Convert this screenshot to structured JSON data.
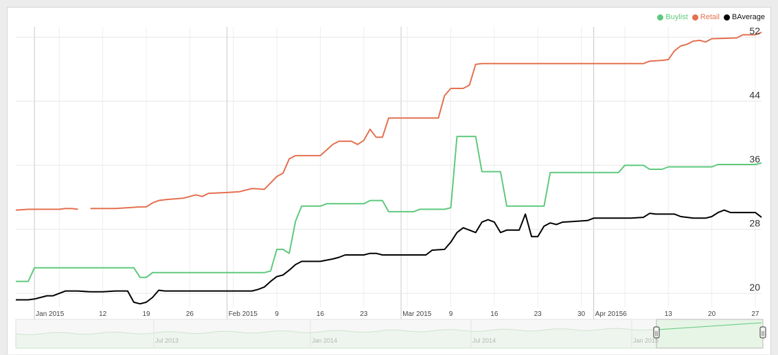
{
  "chart_data": {
    "type": "line",
    "title": "",
    "xlabel": "",
    "ylabel": "",
    "ylim": [
      18.3,
      53.3
    ],
    "y_ticks": [
      20,
      28,
      36,
      44,
      52
    ],
    "x_range": [
      "2014-12-29",
      "2015-04-28"
    ],
    "grid": true,
    "legend_position": "top-right",
    "x_ticks": [
      {
        "date": "2015-01-01",
        "label": "Jan 2015",
        "major": true
      },
      {
        "date": "2015-01-12",
        "label": "12",
        "major": false
      },
      {
        "date": "2015-01-19",
        "label": "19",
        "major": false
      },
      {
        "date": "2015-01-26",
        "label": "26",
        "major": false
      },
      {
        "date": "2015-02-01",
        "label": "Feb 2015",
        "major": true
      },
      {
        "date": "2015-02-09",
        "label": "9",
        "major": false
      },
      {
        "date": "2015-02-16",
        "label": "16",
        "major": false
      },
      {
        "date": "2015-02-23",
        "label": "23",
        "major": false
      },
      {
        "date": "2015-03-01",
        "label": "Mar 2015",
        "major": true
      },
      {
        "date": "2015-03-09",
        "label": "9",
        "major": false
      },
      {
        "date": "2015-03-16",
        "label": "16",
        "major": false
      },
      {
        "date": "2015-03-23",
        "label": "23",
        "major": false
      },
      {
        "date": "2015-03-30",
        "label": "30",
        "major": false
      },
      {
        "date": "2015-04-01",
        "label": "Apr 2015",
        "major": true
      },
      {
        "date": "2015-04-06",
        "label": "6",
        "major": false
      },
      {
        "date": "2015-04-13",
        "label": "13",
        "major": false
      },
      {
        "date": "2015-04-20",
        "label": "20",
        "major": false
      },
      {
        "date": "2015-04-27",
        "label": "27",
        "major": false
      }
    ],
    "series": [
      {
        "name": "Buylist",
        "color": "#5ec97c",
        "points": [
          [
            "2014-12-29",
            21.5
          ],
          [
            "2014-12-31",
            21.5
          ],
          [
            "2015-01-01",
            23.2
          ],
          [
            "2015-01-17",
            23.2
          ],
          [
            "2015-01-18",
            22.0
          ],
          [
            "2015-01-19",
            22.0
          ],
          [
            "2015-01-20",
            22.6
          ],
          [
            "2015-02-07",
            22.6
          ],
          [
            "2015-02-08",
            22.8
          ],
          [
            "2015-02-09",
            25.5
          ],
          [
            "2015-02-10",
            25.5
          ],
          [
            "2015-02-11",
            25.0
          ],
          [
            "2015-02-12",
            29.0
          ],
          [
            "2015-02-13",
            30.9
          ],
          [
            "2015-02-16",
            30.9
          ],
          [
            "2015-02-17",
            31.2
          ],
          [
            "2015-02-23",
            31.2
          ],
          [
            "2015-02-24",
            31.6
          ],
          [
            "2015-02-26",
            31.6
          ],
          [
            "2015-02-27",
            30.2
          ],
          [
            "2015-03-03",
            30.2
          ],
          [
            "2015-03-04",
            30.5
          ],
          [
            "2015-03-08",
            30.5
          ],
          [
            "2015-03-09",
            30.7
          ],
          [
            "2015-03-10",
            39.6
          ],
          [
            "2015-03-13",
            39.6
          ],
          [
            "2015-03-14",
            35.2
          ],
          [
            "2015-03-17",
            35.2
          ],
          [
            "2015-03-18",
            30.9
          ],
          [
            "2015-03-24",
            30.9
          ],
          [
            "2015-03-25",
            35.1
          ],
          [
            "2015-04-05",
            35.1
          ],
          [
            "2015-04-06",
            36.0
          ],
          [
            "2015-04-09",
            36.0
          ],
          [
            "2015-04-10",
            35.5
          ],
          [
            "2015-04-12",
            35.5
          ],
          [
            "2015-04-13",
            35.8
          ],
          [
            "2015-04-20",
            35.8
          ],
          [
            "2015-04-21",
            36.1
          ],
          [
            "2015-04-27",
            36.1
          ],
          [
            "2015-04-28",
            36.3
          ]
        ]
      },
      {
        "name": "Retail",
        "color": "#e4704f",
        "segments": [
          [
            [
              "2014-12-29",
              30.4
            ],
            [
              "2014-12-31",
              30.5
            ],
            [
              "2015-01-03",
              30.5
            ],
            [
              "2015-01-05",
              30.5
            ],
            [
              "2015-01-06",
              30.6
            ],
            [
              "2015-01-07",
              30.6
            ],
            [
              "2015-01-08",
              30.5
            ]
          ],
          [
            [
              "2015-01-10",
              30.6
            ],
            [
              "2015-01-12",
              30.6
            ],
            [
              "2015-01-14",
              30.6
            ],
            [
              "2015-01-16",
              30.7
            ],
            [
              "2015-01-18",
              30.8
            ],
            [
              "2015-01-19",
              30.8
            ],
            [
              "2015-01-20",
              31.3
            ],
            [
              "2015-01-21",
              31.6
            ],
            [
              "2015-01-22",
              31.7
            ],
            [
              "2015-01-25",
              31.9
            ],
            [
              "2015-01-26",
              32.1
            ],
            [
              "2015-01-27",
              32.3
            ],
            [
              "2015-01-28",
              32.1
            ],
            [
              "2015-01-29",
              32.5
            ],
            [
              "2015-02-01",
              32.6
            ],
            [
              "2015-02-03",
              32.7
            ],
            [
              "2015-02-05",
              33.1
            ],
            [
              "2015-02-07",
              33.0
            ],
            [
              "2015-02-08",
              33.8
            ],
            [
              "2015-02-09",
              34.6
            ],
            [
              "2015-02-10",
              35.0
            ],
            [
              "2015-02-11",
              36.8
            ],
            [
              "2015-02-12",
              37.2
            ],
            [
              "2015-02-16",
              37.2
            ],
            [
              "2015-02-17",
              37.9
            ],
            [
              "2015-02-18",
              38.6
            ],
            [
              "2015-02-19",
              39.0
            ],
            [
              "2015-02-21",
              39.0
            ],
            [
              "2015-02-22",
              38.6
            ],
            [
              "2015-02-23",
              39.1
            ],
            [
              "2015-02-24",
              40.5
            ],
            [
              "2015-02-25",
              39.5
            ],
            [
              "2015-02-26",
              39.5
            ],
            [
              "2015-02-27",
              41.9
            ],
            [
              "2015-03-07",
              41.9
            ],
            [
              "2015-03-08",
              44.7
            ],
            [
              "2015-03-09",
              45.6
            ],
            [
              "2015-03-11",
              45.6
            ],
            [
              "2015-03-12",
              46.0
            ],
            [
              "2015-03-13",
              48.6
            ],
            [
              "2015-03-14",
              48.7
            ],
            [
              "2015-03-30",
              48.7
            ],
            [
              "2015-04-09",
              48.7
            ],
            [
              "2015-04-10",
              49.0
            ],
            [
              "2015-04-12",
              49.1
            ],
            [
              "2015-04-13",
              49.2
            ],
            [
              "2015-04-14",
              50.3
            ],
            [
              "2015-04-15",
              50.9
            ],
            [
              "2015-04-16",
              51.1
            ],
            [
              "2015-04-17",
              51.5
            ],
            [
              "2015-04-18",
              51.6
            ],
            [
              "2015-04-19",
              51.4
            ],
            [
              "2015-04-20",
              51.8
            ],
            [
              "2015-04-24",
              51.9
            ],
            [
              "2015-04-25",
              52.3
            ],
            [
              "2015-04-27",
              52.3
            ],
            [
              "2015-04-28",
              52.6
            ]
          ]
        ]
      },
      {
        "name": "BAverage",
        "color": "#000000",
        "points": [
          [
            "2014-12-29",
            19.2
          ],
          [
            "2014-12-31",
            19.2
          ],
          [
            "2015-01-01",
            19.3
          ],
          [
            "2015-01-02",
            19.5
          ],
          [
            "2015-01-03",
            19.7
          ],
          [
            "2015-01-04",
            19.7
          ],
          [
            "2015-01-05",
            20.0
          ],
          [
            "2015-01-06",
            20.3
          ],
          [
            "2015-01-08",
            20.3
          ],
          [
            "2015-01-10",
            20.2
          ],
          [
            "2015-01-12",
            20.2
          ],
          [
            "2015-01-14",
            20.3
          ],
          [
            "2015-01-16",
            20.3
          ],
          [
            "2015-01-17",
            18.9
          ],
          [
            "2015-01-18",
            18.7
          ],
          [
            "2015-01-19",
            18.9
          ],
          [
            "2015-01-20",
            19.5
          ],
          [
            "2015-01-21",
            20.4
          ],
          [
            "2015-01-22",
            20.3
          ],
          [
            "2015-01-25",
            20.3
          ],
          [
            "2015-01-28",
            20.3
          ],
          [
            "2015-02-01",
            20.3
          ],
          [
            "2015-02-05",
            20.3
          ],
          [
            "2015-02-06",
            20.5
          ],
          [
            "2015-02-07",
            20.8
          ],
          [
            "2015-02-08",
            21.5
          ],
          [
            "2015-02-09",
            22.1
          ],
          [
            "2015-02-10",
            22.3
          ],
          [
            "2015-02-11",
            22.9
          ],
          [
            "2015-02-12",
            23.6
          ],
          [
            "2015-02-13",
            24.0
          ],
          [
            "2015-02-16",
            24.0
          ],
          [
            "2015-02-18",
            24.3
          ],
          [
            "2015-02-19",
            24.5
          ],
          [
            "2015-02-20",
            24.8
          ],
          [
            "2015-02-23",
            24.8
          ],
          [
            "2015-02-24",
            25.0
          ],
          [
            "2015-02-25",
            25.0
          ],
          [
            "2015-02-26",
            24.8
          ],
          [
            "2015-03-01",
            24.8
          ],
          [
            "2015-03-05",
            24.8
          ],
          [
            "2015-03-06",
            25.4
          ],
          [
            "2015-03-08",
            25.5
          ],
          [
            "2015-03-09",
            26.4
          ],
          [
            "2015-03-10",
            27.6
          ],
          [
            "2015-03-11",
            28.2
          ],
          [
            "2015-03-13",
            27.6
          ],
          [
            "2015-03-14",
            28.9
          ],
          [
            "2015-03-15",
            29.2
          ],
          [
            "2015-03-16",
            28.9
          ],
          [
            "2015-03-17",
            27.6
          ],
          [
            "2015-03-18",
            27.9
          ],
          [
            "2015-03-20",
            27.9
          ],
          [
            "2015-03-21",
            29.9
          ],
          [
            "2015-03-22",
            27.1
          ],
          [
            "2015-03-23",
            27.1
          ],
          [
            "2015-03-24",
            28.4
          ],
          [
            "2015-03-25",
            28.8
          ],
          [
            "2015-03-26",
            28.6
          ],
          [
            "2015-03-27",
            28.9
          ],
          [
            "2015-03-29",
            29.0
          ],
          [
            "2015-03-31",
            29.1
          ],
          [
            "2015-04-01",
            29.4
          ],
          [
            "2015-04-07",
            29.4
          ],
          [
            "2015-04-09",
            29.5
          ],
          [
            "2015-04-10",
            30.0
          ],
          [
            "2015-04-11",
            29.9
          ],
          [
            "2015-04-14",
            29.9
          ],
          [
            "2015-04-15",
            29.6
          ],
          [
            "2015-04-17",
            29.4
          ],
          [
            "2015-04-19",
            29.4
          ],
          [
            "2015-04-20",
            29.6
          ],
          [
            "2015-04-21",
            30.1
          ],
          [
            "2015-04-22",
            30.4
          ],
          [
            "2015-04-23",
            30.1
          ],
          [
            "2015-04-27",
            30.1
          ],
          [
            "2015-04-28",
            29.5
          ]
        ]
      }
    ]
  },
  "navigator": {
    "labels": [
      "Jul 2013",
      "Jan 2014",
      "Jul 2014",
      "Jan 2015"
    ],
    "handle_glyph": "||"
  }
}
